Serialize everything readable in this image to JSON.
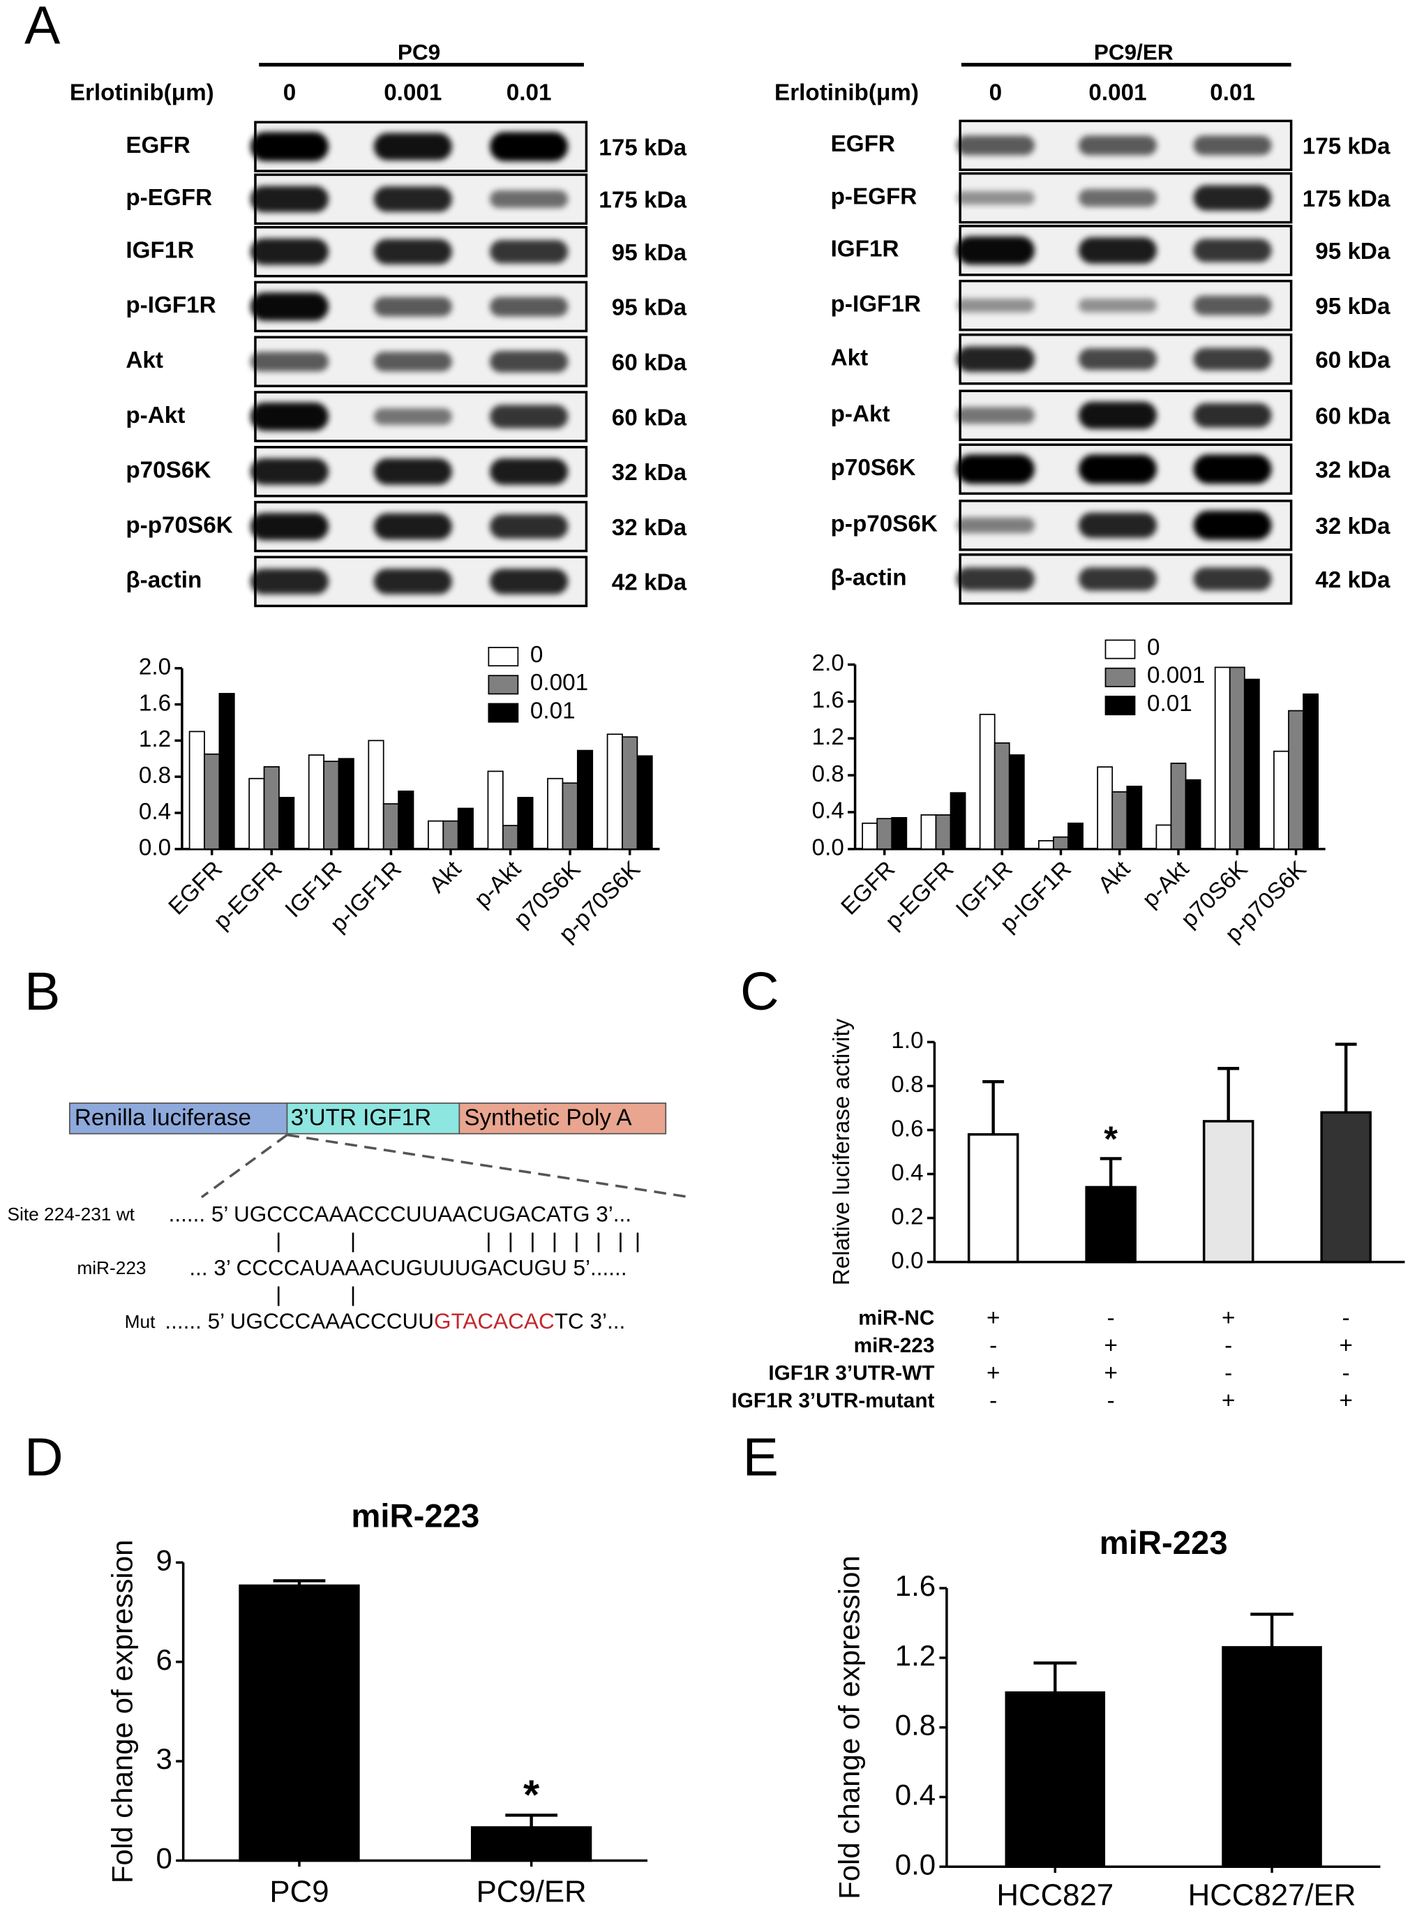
{
  "panel_labels": [
    "A",
    "B",
    "C",
    "D",
    "E"
  ],
  "blots": [
    {
      "cell_line": "PC9",
      "treatment_label": "Erlotinib(μm)",
      "doses": [
        "0",
        "0.001",
        "0.01"
      ],
      "proteins": [
        {
          "name": "EGFR",
          "size": "175 kDa"
        },
        {
          "name": "p-EGFR",
          "size": "175 kDa"
        },
        {
          "name": "IGF1R",
          "size": "95 kDa"
        },
        {
          "name": "p-IGF1R",
          "size": "95 kDa"
        },
        {
          "name": "Akt",
          "size": "60 kDa"
        },
        {
          "name": "p-Akt",
          "size": "60 kDa"
        },
        {
          "name": "p70S6K",
          "size": "32 kDa"
        },
        {
          "name": "p-p70S6K",
          "size": "32 kDa"
        },
        {
          "name": "β-actin",
          "size": "42 kDa"
        }
      ]
    },
    {
      "cell_line": "PC9/ER",
      "treatment_label": "Erlotinib(μm)",
      "doses": [
        "0",
        "0.001",
        "0.01"
      ],
      "proteins": [
        {
          "name": "EGFR",
          "size": "175 kDa"
        },
        {
          "name": "p-EGFR",
          "size": "175 kDa"
        },
        {
          "name": "IGF1R",
          "size": "95 kDa"
        },
        {
          "name": "p-IGF1R",
          "size": "95 kDa"
        },
        {
          "name": "Akt",
          "size": "60 kDa"
        },
        {
          "name": "p-Akt",
          "size": "60 kDa"
        },
        {
          "name": "p70S6K",
          "size": "32 kDa"
        },
        {
          "name": "p-p70S6K",
          "size": "32 kDa"
        },
        {
          "name": "β-actin",
          "size": "42 kDa"
        }
      ]
    }
  ],
  "construct": {
    "segments": [
      "Renilla luciferase",
      "3’UTR IGF1R",
      "Synthetic Poly A"
    ],
    "sequences": [
      {
        "label": "Site 224-231 wt",
        "text": "...... 5’ UGCCCAAACCCUUAACUGACATG 3’..."
      },
      {
        "label": "miR-223",
        "text": "... 3’ CCCCAUAAACUGUUUGACUGU 5’......"
      },
      {
        "label": "Mut",
        "text": "...... 5’ UGCCCAAACCCUU",
        "mutation": "GTACACAC",
        "tail": "TC 3’..."
      }
    ]
  },
  "chart_data": [
    {
      "type": "bar",
      "categories": [
        "EGFR",
        "p-EGFR",
        "IGF1R",
        "p-IGF1R",
        "Akt",
        "p-Akt",
        "p70S6K",
        "p-p70S6K"
      ],
      "series": [
        {
          "name": "0",
          "color": "#ffffff",
          "values": [
            1.3,
            0.78,
            1.04,
            1.2,
            0.31,
            0.86,
            0.78,
            1.27
          ]
        },
        {
          "name": "0.001",
          "color": "#808080",
          "values": [
            1.05,
            0.91,
            0.97,
            0.5,
            0.31,
            0.26,
            0.73,
            1.24
          ]
        },
        {
          "name": "0.01",
          "color": "#000000",
          "values": [
            1.72,
            0.57,
            1.0,
            0.64,
            0.45,
            0.57,
            1.09,
            1.03
          ]
        }
      ],
      "ylim": [
        0,
        2
      ],
      "yticks": [
        {
          "value": 0,
          "label": "0.0"
        },
        0.4,
        0.8,
        1.2,
        1.6,
        {
          "value": 2,
          "label": "2.0"
        }
      ],
      "legend": "top-right"
    },
    {
      "type": "bar",
      "categories": [
        "EGFR",
        "p-EGFR",
        "IGF1R",
        "p-IGF1R",
        "Akt",
        "p-Akt",
        "p70S6K",
        "p-p70S6K"
      ],
      "series": [
        {
          "name": "0",
          "color": "#ffffff",
          "values": [
            0.28,
            0.37,
            1.46,
            0.09,
            0.89,
            0.26,
            1.97,
            1.06
          ]
        },
        {
          "name": "0.001",
          "color": "#808080",
          "values": [
            0.33,
            0.37,
            1.15,
            0.13,
            0.62,
            0.93,
            1.97,
            1.5
          ]
        },
        {
          "name": "0.01",
          "color": "#000000",
          "values": [
            0.34,
            0.61,
            1.02,
            0.28,
            0.68,
            0.75,
            1.84,
            1.68
          ]
        }
      ],
      "ylim": [
        0,
        2
      ],
      "yticks": [
        {
          "value": 0,
          "label": "0.0"
        },
        0.4,
        0.8,
        1.2,
        1.6,
        {
          "value": 2,
          "label": "2.0"
        }
      ],
      "legend": "top-right"
    },
    {
      "type": "bar",
      "ylabel": "Relative luciferase activity",
      "values": [
        0.58,
        0.34,
        0.64,
        0.68
      ],
      "errors": [
        0.24,
        0.13,
        0.24,
        0.31
      ],
      "colors": [
        "#ffffff",
        "#000000",
        "#e6e6e6",
        "#333333"
      ],
      "ylim": [
        0,
        1
      ],
      "yticks": [
        {
          "value": 0,
          "label": "0.0"
        },
        0.2,
        0.4,
        0.6,
        0.8,
        {
          "value": 1,
          "label": "1.0"
        }
      ],
      "annotations": [
        "*"
      ],
      "conditions": [
        {
          "label": "miR-NC",
          "marks": [
            "+",
            "-",
            "+",
            "-"
          ]
        },
        {
          "label": "miR-223",
          "marks": [
            "-",
            "+",
            "-",
            "+"
          ]
        },
        {
          "label": "IGF1R 3’UTR-WT",
          "marks": [
            "+",
            "+",
            "-",
            "-"
          ]
        },
        {
          "label": "IGF1R 3’UTR-mutant",
          "marks": [
            "-",
            "-",
            "+",
            "+"
          ]
        }
      ]
    },
    {
      "type": "bar",
      "title": "miR-223",
      "ylabel": "Fold change of expression",
      "categories": [
        "PC9",
        "PC9/ER"
      ],
      "values": [
        8.3,
        1.0
      ],
      "errors": [
        0.15,
        0.37
      ],
      "color": "#000000",
      "ylim": [
        0,
        9
      ],
      "yticks": [
        0,
        3,
        6,
        9
      ],
      "annotations": [
        "*"
      ]
    },
    {
      "type": "bar",
      "title": "miR-223",
      "ylabel": "Fold change of expression",
      "categories": [
        "HCC827",
        "HCC827/ER"
      ],
      "values": [
        1.0,
        1.26
      ],
      "errors": [
        0.17,
        0.19
      ],
      "color": "#000000",
      "ylim": [
        0,
        1.6
      ],
      "yticks": [
        {
          "value": 0,
          "label": "0.0"
        },
        0.4,
        0.8,
        1.2,
        1.6
      ]
    }
  ]
}
